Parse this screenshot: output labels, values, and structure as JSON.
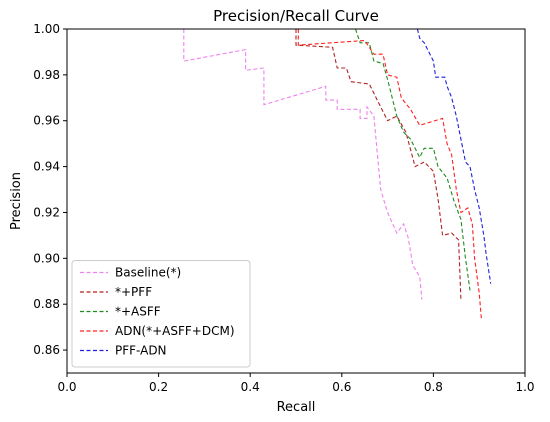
{
  "chart_data": {
    "type": "line",
    "title": "Precision/Recall Curve",
    "xlabel": "Recall",
    "ylabel": "Precision",
    "xlim": [
      0.0,
      1.0
    ],
    "ylim": [
      0.85,
      1.0
    ],
    "xticks": [
      "0.0",
      "0.2",
      "0.4",
      "0.6",
      "0.8",
      "1.0"
    ],
    "yticks": [
      "0.86",
      "0.88",
      "0.90",
      "0.92",
      "0.94",
      "0.96",
      "0.98",
      "1.00"
    ],
    "grid": false,
    "legend_position": "lower-left",
    "series": [
      {
        "name": "Baseline(*)",
        "color": "#ee82ee",
        "points": [
          [
            0.255,
            1.0
          ],
          [
            0.255,
            0.986
          ],
          [
            0.39,
            0.991
          ],
          [
            0.39,
            0.982
          ],
          [
            0.43,
            0.983
          ],
          [
            0.43,
            0.967
          ],
          [
            0.565,
            0.975
          ],
          [
            0.565,
            0.969
          ],
          [
            0.59,
            0.969
          ],
          [
            0.59,
            0.965
          ],
          [
            0.64,
            0.965
          ],
          [
            0.64,
            0.961
          ],
          [
            0.655,
            0.961
          ],
          [
            0.655,
            0.966
          ],
          [
            0.67,
            0.962
          ],
          [
            0.675,
            0.951
          ],
          [
            0.685,
            0.93
          ],
          [
            0.7,
            0.92
          ],
          [
            0.72,
            0.911
          ],
          [
            0.735,
            0.915
          ],
          [
            0.745,
            0.909
          ],
          [
            0.755,
            0.897
          ],
          [
            0.77,
            0.892
          ],
          [
            0.775,
            0.882
          ]
        ]
      },
      {
        "name": "*+PFF",
        "color": "#b22222",
        "points": [
          [
            0.5,
            1.0
          ],
          [
            0.5,
            0.993
          ],
          [
            0.58,
            0.992
          ],
          [
            0.59,
            0.983
          ],
          [
            0.61,
            0.983
          ],
          [
            0.62,
            0.977
          ],
          [
            0.66,
            0.976
          ],
          [
            0.68,
            0.968
          ],
          [
            0.7,
            0.96
          ],
          [
            0.72,
            0.962
          ],
          [
            0.74,
            0.955
          ],
          [
            0.76,
            0.94
          ],
          [
            0.78,
            0.942
          ],
          [
            0.8,
            0.938
          ],
          [
            0.81,
            0.926
          ],
          [
            0.82,
            0.91
          ],
          [
            0.84,
            0.911
          ],
          [
            0.855,
            0.908
          ],
          [
            0.86,
            0.882
          ]
        ]
      },
      {
        "name": "*+ASFF",
        "color": "#1e8c1e",
        "points": [
          [
            0.63,
            1.0
          ],
          [
            0.64,
            0.994
          ],
          [
            0.66,
            0.994
          ],
          [
            0.67,
            0.986
          ],
          [
            0.69,
            0.985
          ],
          [
            0.7,
            0.978
          ],
          [
            0.71,
            0.97
          ],
          [
            0.72,
            0.962
          ],
          [
            0.735,
            0.955
          ],
          [
            0.75,
            0.952
          ],
          [
            0.77,
            0.944
          ],
          [
            0.78,
            0.948
          ],
          [
            0.8,
            0.948
          ],
          [
            0.81,
            0.94
          ],
          [
            0.83,
            0.935
          ],
          [
            0.845,
            0.925
          ],
          [
            0.86,
            0.917
          ],
          [
            0.87,
            0.9
          ],
          [
            0.88,
            0.886
          ]
        ]
      },
      {
        "name": "ADN(*+ASFF+DCM)",
        "color": "#ff2020",
        "points": [
          [
            0.505,
            1.0
          ],
          [
            0.505,
            0.993
          ],
          [
            0.65,
            0.995
          ],
          [
            0.67,
            0.989
          ],
          [
            0.69,
            0.989
          ],
          [
            0.7,
            0.98
          ],
          [
            0.72,
            0.979
          ],
          [
            0.73,
            0.97
          ],
          [
            0.75,
            0.965
          ],
          [
            0.77,
            0.958
          ],
          [
            0.82,
            0.961
          ],
          [
            0.83,
            0.95
          ],
          [
            0.84,
            0.945
          ],
          [
            0.85,
            0.93
          ],
          [
            0.86,
            0.92
          ],
          [
            0.875,
            0.922
          ],
          [
            0.885,
            0.915
          ],
          [
            0.89,
            0.9
          ],
          [
            0.9,
            0.885
          ],
          [
            0.905,
            0.873
          ]
        ]
      },
      {
        "name": "PFF-ADN",
        "color": "#1f1fdd",
        "points": [
          [
            0.765,
            1.0
          ],
          [
            0.77,
            0.996
          ],
          [
            0.78,
            0.994
          ],
          [
            0.79,
            0.99
          ],
          [
            0.8,
            0.986
          ],
          [
            0.805,
            0.979
          ],
          [
            0.825,
            0.979
          ],
          [
            0.83,
            0.975
          ],
          [
            0.84,
            0.97
          ],
          [
            0.85,
            0.962
          ],
          [
            0.86,
            0.952
          ],
          [
            0.87,
            0.942
          ],
          [
            0.88,
            0.94
          ],
          [
            0.89,
            0.93
          ],
          [
            0.9,
            0.922
          ],
          [
            0.91,
            0.91
          ],
          [
            0.915,
            0.902
          ],
          [
            0.925,
            0.889
          ]
        ]
      }
    ]
  }
}
